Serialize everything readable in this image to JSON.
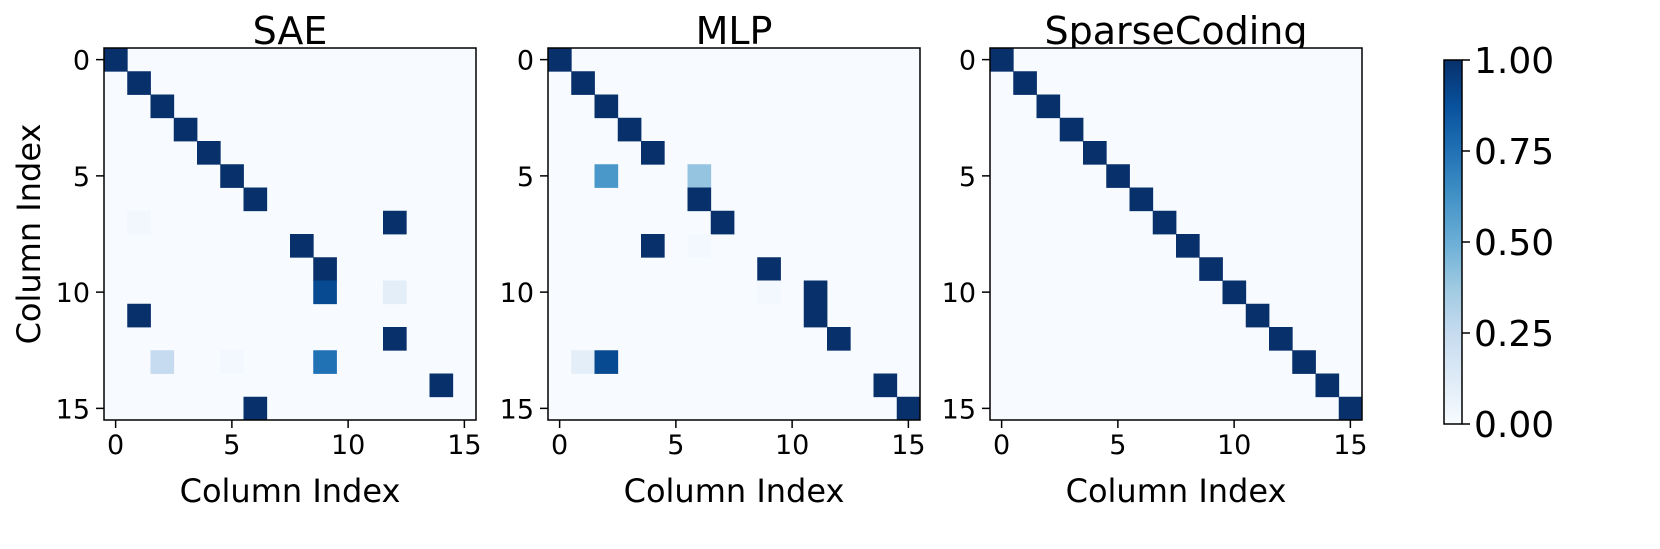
{
  "chart_data": [
    {
      "type": "heatmap",
      "title": "SAE",
      "xlabel": "Column Index",
      "ylabel": "Column Index",
      "xticks": [
        0,
        5,
        10,
        15
      ],
      "yticks": [
        0,
        5,
        10,
        15
      ],
      "size": 16,
      "cells": [
        [
          0,
          0,
          1.0
        ],
        [
          1,
          1,
          1.0
        ],
        [
          2,
          2,
          1.0
        ],
        [
          3,
          3,
          1.0
        ],
        [
          4,
          4,
          1.0
        ],
        [
          5,
          5,
          1.0
        ],
        [
          6,
          6,
          1.0
        ],
        [
          7,
          1,
          0.03
        ],
        [
          7,
          12,
          1.0
        ],
        [
          8,
          8,
          1.0
        ],
        [
          9,
          9,
          1.0
        ],
        [
          10,
          9,
          0.9
        ],
        [
          10,
          12,
          0.1
        ],
        [
          11,
          1,
          1.0
        ],
        [
          12,
          12,
          1.0
        ],
        [
          13,
          2,
          0.25
        ],
        [
          13,
          5,
          0.02
        ],
        [
          13,
          9,
          0.75
        ],
        [
          14,
          14,
          1.0
        ],
        [
          15,
          6,
          1.0
        ]
      ]
    },
    {
      "type": "heatmap",
      "title": "MLP",
      "xlabel": "Column Index",
      "ylabel": "",
      "xticks": [
        0,
        5,
        10,
        15
      ],
      "yticks": [
        0,
        5,
        10,
        15
      ],
      "size": 16,
      "cells": [
        [
          0,
          0,
          1.0
        ],
        [
          1,
          1,
          1.0
        ],
        [
          2,
          2,
          1.0
        ],
        [
          3,
          3,
          1.0
        ],
        [
          4,
          4,
          1.0
        ],
        [
          5,
          2,
          0.6
        ],
        [
          5,
          6,
          0.4
        ],
        [
          6,
          6,
          1.0
        ],
        [
          7,
          7,
          1.0
        ],
        [
          8,
          4,
          1.0
        ],
        [
          8,
          6,
          0.02
        ],
        [
          9,
          9,
          1.0
        ],
        [
          10,
          9,
          0.02
        ],
        [
          10,
          11,
          1.0
        ],
        [
          11,
          11,
          1.0
        ],
        [
          12,
          12,
          1.0
        ],
        [
          13,
          1,
          0.1
        ],
        [
          13,
          2,
          0.9
        ],
        [
          14,
          14,
          1.0
        ],
        [
          15,
          15,
          1.0
        ]
      ]
    },
    {
      "type": "heatmap",
      "title": "SparseCoding",
      "xlabel": "Column Index",
      "ylabel": "",
      "xticks": [
        0,
        5,
        10,
        15
      ],
      "yticks": [
        0,
        5,
        10,
        15
      ],
      "size": 16,
      "cells": [
        [
          0,
          0,
          1.0
        ],
        [
          1,
          1,
          1.0
        ],
        [
          2,
          2,
          1.0
        ],
        [
          3,
          3,
          1.0
        ],
        [
          4,
          4,
          1.0
        ],
        [
          5,
          5,
          1.0
        ],
        [
          6,
          6,
          1.0
        ],
        [
          7,
          7,
          1.0
        ],
        [
          8,
          8,
          1.0
        ],
        [
          9,
          9,
          1.0
        ],
        [
          10,
          10,
          1.0
        ],
        [
          11,
          11,
          1.0
        ],
        [
          12,
          12,
          1.0
        ],
        [
          13,
          13,
          1.0
        ],
        [
          14,
          14,
          1.0
        ],
        [
          15,
          15,
          1.0
        ]
      ]
    }
  ],
  "colorbar": {
    "ticks": [
      "0.00",
      "0.25",
      "0.50",
      "0.75",
      "1.00"
    ],
    "range": [
      0,
      1
    ],
    "colormap": "Blues",
    "stops": [
      "#f7fbff",
      "#deebf7",
      "#c6dbef",
      "#9ecae1",
      "#6baed6",
      "#4292c6",
      "#2171b5",
      "#08519c",
      "#08306b"
    ]
  }
}
